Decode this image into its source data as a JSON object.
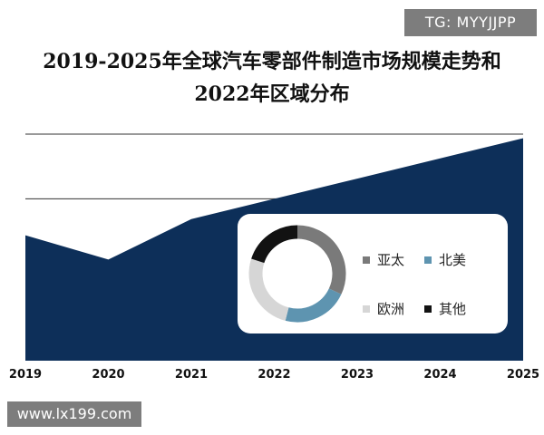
{
  "watermarks": {
    "tg": "TG: MYYJJPP",
    "site": "www.lx199.com"
  },
  "chart_data": [
    {
      "type": "area",
      "title_line1": "2019-2025年全球汽车零部件制造市场规模走势和",
      "title_line2": "2022年区域分布",
      "categories": [
        "2019",
        "2020",
        "2021",
        "2022",
        "2023",
        "2024",
        "2025"
      ],
      "values": [
        62,
        50,
        70,
        80,
        90,
        100,
        110
      ],
      "ylim": [
        0,
        112
      ],
      "gridlines": [
        47,
        80,
        112
      ],
      "y_tick_labels_shown": false,
      "color": "#0d2f59"
    },
    {
      "type": "pie",
      "donut": true,
      "labels": [
        "亚太",
        "北美",
        "欧洲",
        "其他"
      ],
      "values": [
        32,
        22,
        26,
        20
      ],
      "colors": [
        "#7a7a7a",
        "#5e94b0",
        "#d6d6d6",
        "#121212"
      ],
      "legend_placement": "right"
    }
  ]
}
